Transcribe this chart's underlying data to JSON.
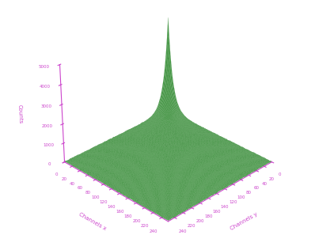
{
  "title": "",
  "xlabel": "Channels y",
  "ylabel": "Channels x",
  "zlabel": "Counts",
  "z_ticks": [
    0,
    1000,
    2000,
    3000,
    4000,
    5000
  ],
  "x_ticks": [
    0,
    20,
    40,
    60,
    80,
    100,
    120,
    140,
    160,
    180,
    200,
    220,
    240
  ],
  "y_ticks": [
    0,
    20,
    40,
    60,
    80,
    100,
    120,
    140,
    160,
    180,
    200,
    220,
    240
  ],
  "surface_color": "#4a9a4a",
  "edge_color": "#3a8a3a",
  "label_color": "#cc44cc",
  "background_color": "#ffffff",
  "grid_size": 256,
  "spike_amplitude": 5000,
  "spike_spread": 12,
  "base_value": 0,
  "noise_amplitude": 30,
  "elev": 30,
  "azim": -135
}
